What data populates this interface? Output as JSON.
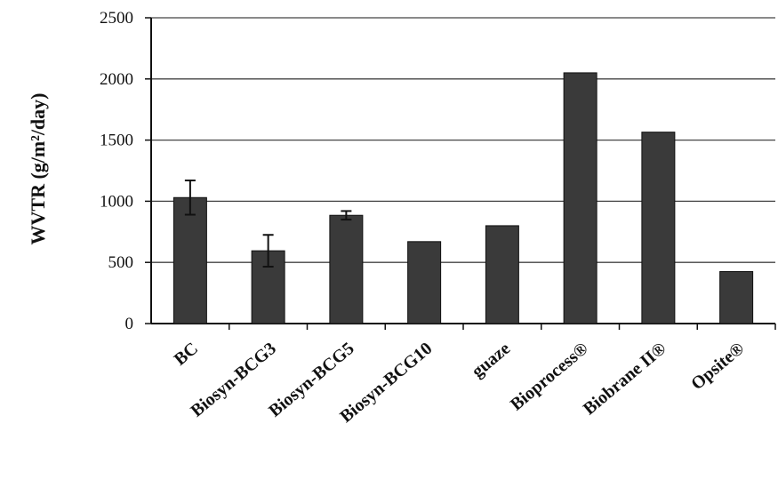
{
  "chart_data": {
    "type": "bar",
    "title": "",
    "xlabel": "",
    "ylabel": "WVTR (g/m²/day)",
    "ylim": [
      0,
      2500
    ],
    "yticks": [
      0,
      500,
      1000,
      1500,
      2000,
      2500
    ],
    "grid": "horizontal",
    "categories": [
      "BC",
      "Biosyn-BCG3",
      "Biosyn-BCG5",
      "Biosyn-BCG10",
      "guaze",
      "Bioprocess®",
      "Biobrane II®",
      "Opsite®"
    ],
    "values": [
      1030,
      595,
      885,
      670,
      800,
      2050,
      1565,
      425
    ],
    "error_bars": [
      140,
      130,
      35,
      0,
      0,
      0,
      0,
      0
    ],
    "bar_color": "#3a3a3a",
    "grid_color": "#444444"
  }
}
